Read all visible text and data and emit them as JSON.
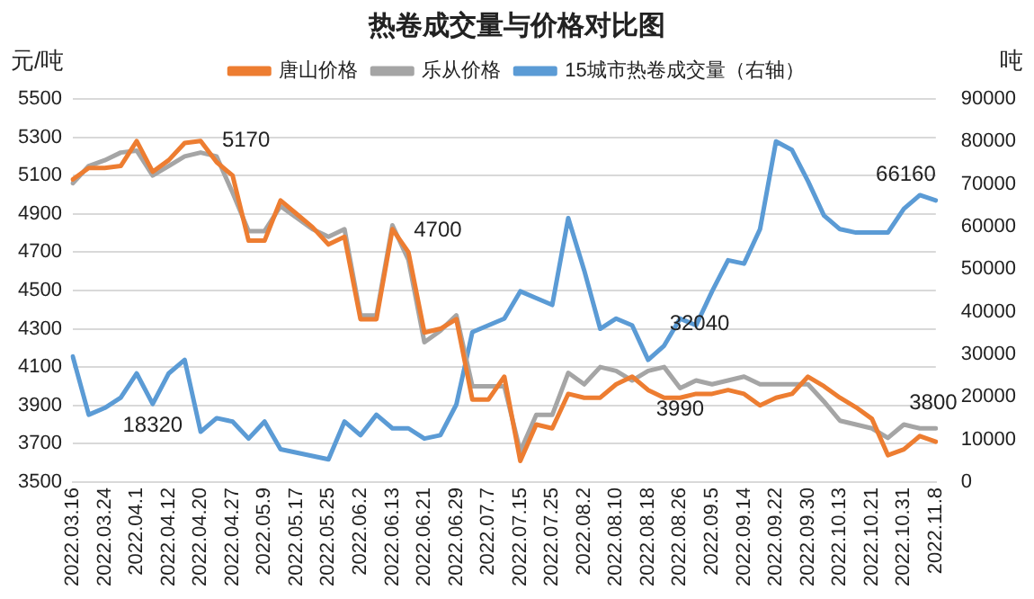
{
  "chart_data": {
    "type": "line",
    "title": "热卷成交量与价格对比图",
    "ylabel": "元/吨",
    "y2label": "吨",
    "categories": [
      "2022.03.16",
      null,
      "2022.03.24",
      null,
      "2022.04.1",
      null,
      "2022.04.12",
      null,
      "2022.04.20",
      null,
      "2022.04.27",
      null,
      "2022.05.9",
      null,
      "2022.05.17",
      null,
      "2022.05.25",
      null,
      "2022.06.2",
      null,
      "2022.06.13",
      null,
      "2022.06.21",
      null,
      "2022.06.29",
      null,
      "2022.07.7",
      null,
      "2022.07.15",
      null,
      "2022.07.25",
      null,
      "2022.08.2",
      null,
      "2022.08.10",
      null,
      "2022.08.18",
      null,
      "2022.08.26",
      null,
      "2022.09.5",
      null,
      "2022.09.14",
      null,
      "2022.09.22",
      null,
      "2022.09.30",
      null,
      "2022.10.13",
      null,
      "2022.10.21",
      null,
      "2022.10.31",
      null,
      "2022.11.8"
    ],
    "series": [
      {
        "name": "唐山价格",
        "color": "#ed7d31",
        "values": [
          5080,
          5140,
          5140,
          5150,
          5280,
          5120,
          5180,
          5270,
          5280,
          5170,
          5100,
          4760,
          4760,
          4970,
          4900,
          4830,
          4740,
          4780,
          4350,
          4350,
          4820,
          4700,
          4280,
          4300,
          4350,
          3930,
          3930,
          4050,
          3610,
          3800,
          3780,
          3960,
          3940,
          3940,
          4010,
          4050,
          3980,
          3940,
          3940,
          3960,
          3960,
          3980,
          3960,
          3900,
          3940,
          3960,
          4050,
          4000,
          3940,
          3890,
          3830,
          3640,
          3670,
          3740,
          3710
        ],
        "value_labels": [
          null,
          null,
          null,
          null,
          null,
          null,
          null,
          null,
          null,
          "5170",
          null,
          null,
          null,
          null,
          null,
          null,
          null,
          null,
          null,
          null,
          null,
          "4700",
          null,
          null,
          null,
          null,
          null,
          null,
          null,
          null,
          null,
          null,
          null,
          null,
          null,
          null,
          null,
          null,
          null,
          null,
          null,
          null,
          null,
          null,
          null,
          null,
          null,
          null,
          null,
          null,
          null,
          null,
          null,
          null,
          null
        ]
      },
      {
        "name": "乐从价格",
        "color": "#a5a5a5",
        "values": [
          5060,
          5150,
          5180,
          5220,
          5230,
          5100,
          5150,
          5200,
          5220,
          5200,
          5010,
          4810,
          4810,
          4940,
          4880,
          4820,
          4780,
          4820,
          4370,
          4370,
          4840,
          4660,
          4230,
          4290,
          4370,
          4000,
          4000,
          4000,
          3660,
          3850,
          3850,
          4070,
          4010,
          4100,
          4080,
          4030,
          4080,
          4100,
          3990,
          4030,
          4010,
          4030,
          4050,
          4010,
          4010,
          4010,
          4010,
          3920,
          3820,
          3800,
          3780,
          3730,
          3800,
          3780,
          3780
        ],
        "value_labels": [
          null,
          null,
          null,
          null,
          null,
          null,
          null,
          null,
          null,
          null,
          null,
          null,
          null,
          null,
          null,
          null,
          null,
          null,
          null,
          null,
          null,
          null,
          null,
          null,
          null,
          null,
          null,
          null,
          null,
          null,
          null,
          null,
          null,
          null,
          null,
          null,
          null,
          null,
          "3990",
          null,
          null,
          null,
          null,
          null,
          null,
          null,
          null,
          null,
          null,
          null,
          null,
          null,
          "3800",
          null,
          null
        ]
      },
      {
        "name": "15城市热卷成交量（右轴）",
        "color": "#5b9bd5",
        "axis": "y2",
        "values": [
          29500,
          15800,
          17400,
          19800,
          25500,
          18320,
          25500,
          28700,
          11800,
          15000,
          14200,
          10200,
          14200,
          7700,
          6900,
          6100,
          5300,
          14200,
          11000,
          15800,
          12600,
          12600,
          10200,
          11000,
          18200,
          35200,
          36800,
          38400,
          44800,
          43200,
          41600,
          62000,
          49700,
          36000,
          38400,
          36800,
          28700,
          32040,
          38400,
          36800,
          44800,
          52100,
          51300,
          59400,
          80000,
          78000,
          70700,
          62600,
          59400,
          58600,
          58600,
          58600,
          64200,
          67400,
          66160
        ],
        "value_labels": [
          null,
          null,
          null,
          null,
          null,
          "18320",
          null,
          null,
          null,
          null,
          null,
          null,
          null,
          null,
          null,
          null,
          null,
          null,
          null,
          null,
          null,
          null,
          null,
          null,
          null,
          null,
          null,
          null,
          null,
          null,
          null,
          null,
          null,
          null,
          null,
          null,
          null,
          "32040",
          null,
          null,
          null,
          null,
          null,
          null,
          null,
          null,
          null,
          null,
          null,
          null,
          null,
          null,
          null,
          null,
          "66160"
        ]
      }
    ],
    "ylim": [
      3500,
      5500
    ],
    "yticks": [
      3500,
      3700,
      3900,
      4100,
      4300,
      4500,
      4700,
      4900,
      5100,
      5300,
      5500
    ],
    "y2lim": [
      0,
      90000
    ],
    "y2ticks": [
      0,
      10000,
      20000,
      30000,
      40000,
      50000,
      60000,
      70000,
      80000,
      90000
    ],
    "grid": "y",
    "legend": "top",
    "marker": "none",
    "line_style": "solid"
  }
}
